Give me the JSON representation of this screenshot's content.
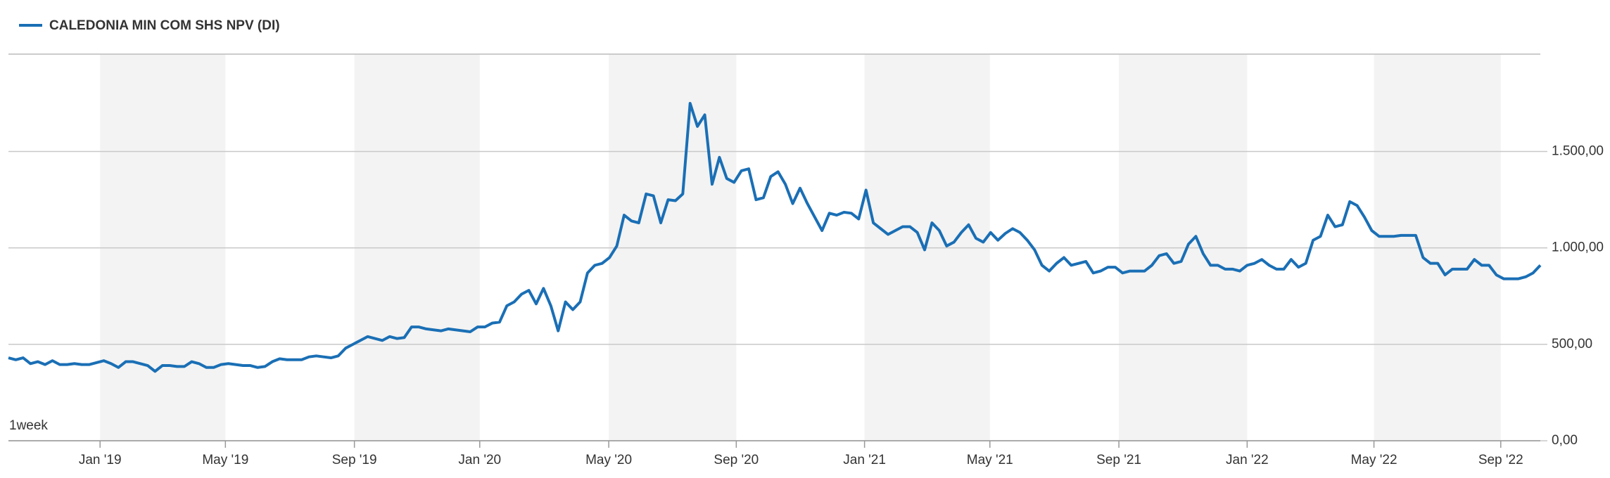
{
  "chart_data": {
    "type": "line",
    "legend_label": "CALEDONIA MIN COM SHS NPV (DI)",
    "interval_label": "1week",
    "series": [
      {
        "name": "CALEDONIA MIN COM SHS NPV (DI)",
        "color": "#1a6fb5",
        "values": [
          430,
          420,
          430,
          400,
          410,
          395,
          415,
          395,
          395,
          400,
          395,
          395,
          405,
          415,
          400,
          380,
          410,
          410,
          400,
          390,
          360,
          390,
          390,
          385,
          385,
          410,
          400,
          380,
          380,
          395,
          400,
          395,
          390,
          390,
          380,
          385,
          410,
          425,
          420,
          420,
          420,
          435,
          440,
          435,
          430,
          440,
          480,
          500,
          520,
          540,
          530,
          520,
          540,
          530,
          535,
          590,
          590,
          580,
          575,
          570,
          580,
          575,
          570,
          565,
          590,
          590,
          610,
          615,
          700,
          720,
          760,
          780,
          710,
          790,
          700,
          570,
          720,
          680,
          720,
          870,
          910,
          920,
          950,
          1010,
          1170,
          1140,
          1130,
          1280,
          1270,
          1130,
          1250,
          1245,
          1280,
          1750,
          1630,
          1690,
          1330,
          1470,
          1360,
          1340,
          1400,
          1410,
          1250,
          1260,
          1370,
          1395,
          1330,
          1230,
          1310,
          1230,
          1160,
          1090,
          1180,
          1170,
          1185,
          1180,
          1150,
          1300,
          1130,
          1100,
          1070,
          1090,
          1110,
          1110,
          1080,
          990,
          1130,
          1090,
          1010,
          1030,
          1080,
          1120,
          1050,
          1030,
          1080,
          1040,
          1075,
          1100,
          1080,
          1040,
          990,
          910,
          880,
          920,
          950,
          910,
          920,
          930,
          870,
          880,
          900,
          900,
          870,
          880,
          880,
          880,
          910,
          960,
          970,
          920,
          930,
          1020,
          1060,
          970,
          910,
          910,
          890,
          890,
          880,
          910,
          920,
          940,
          910,
          890,
          890,
          940,
          900,
          920,
          1040,
          1060,
          1170,
          1110,
          1120,
          1240,
          1220,
          1160,
          1090,
          1060,
          1060,
          1060,
          1065,
          1065,
          1065,
          950,
          920,
          920,
          860,
          890,
          890,
          890,
          940,
          910,
          910,
          860,
          840,
          840,
          840,
          850,
          870,
          910
        ]
      }
    ],
    "xlim": [
      0,
      209
    ],
    "xticks": [
      {
        "value": 12.5,
        "label": "Jan '19"
      },
      {
        "value": 29.6,
        "label": "May '19"
      },
      {
        "value": 47.2,
        "label": "Sep '19"
      },
      {
        "value": 64.3,
        "label": "Jan '20"
      },
      {
        "value": 81.9,
        "label": "May '20"
      },
      {
        "value": 99.3,
        "label": "Sep '20"
      },
      {
        "value": 116.8,
        "label": "Jan '21"
      },
      {
        "value": 133.9,
        "label": "May '21"
      },
      {
        "value": 151.5,
        "label": "Sep '21"
      },
      {
        "value": 169,
        "label": "Jan '22"
      },
      {
        "value": 186.3,
        "label": "May '22"
      },
      {
        "value": 203.6,
        "label": "Sep '22"
      }
    ],
    "ylim": [
      0,
      2005
    ],
    "yticks": [
      {
        "value": 0,
        "label": "0,00"
      },
      {
        "value": 500,
        "label": "500,00"
      },
      {
        "value": 1000,
        "label": "1.000,00"
      },
      {
        "value": 1500,
        "label": "1.500,00"
      }
    ],
    "grid": true
  }
}
